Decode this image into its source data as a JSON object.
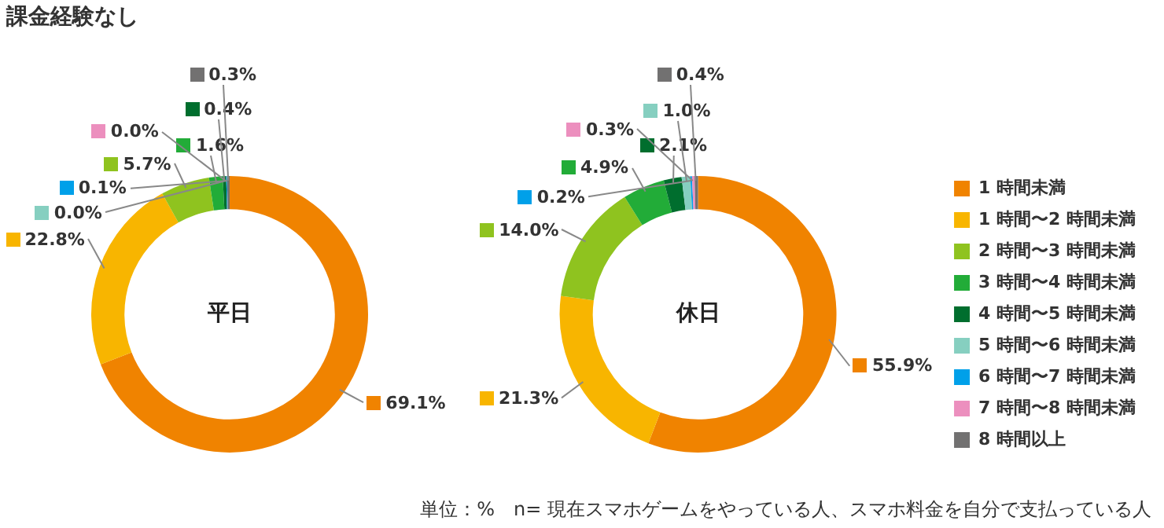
{
  "chart_data": {
    "type": "donut",
    "title": "課金経験なし",
    "annotations": [
      "単位：%　n= 現在スマホゲームをやっている人、スマホ料金を自分で支払っている人"
    ],
    "categories": [
      "1 時間未満",
      "1 時間〜2 時間未満",
      "2 時間〜3 時間未満",
      "3 時間〜4 時間未満",
      "4 時間〜5 時間未満",
      "5 時間〜6 時間未満",
      "6 時間〜7 時間未満",
      "7 時間〜8 時間未満",
      "8 時間以上"
    ],
    "colors": [
      "#f08300",
      "#f8b500",
      "#8fc31f",
      "#22ac38",
      "#006e2e",
      "#86cfc0",
      "#00a0e9",
      "#ec8fbe",
      "#727171"
    ],
    "series": [
      {
        "name": "平日",
        "values": [
          69.1,
          22.8,
          5.7,
          1.6,
          0.4,
          0.0,
          0.1,
          0.0,
          0.3
        ],
        "value_labels": [
          "69.1%",
          "22.8%",
          "5.7%",
          "1.6%",
          "0.4%",
          "0.0%",
          "0.1%",
          "0.0%",
          "0.3%"
        ]
      },
      {
        "name": "休日",
        "values": [
          55.9,
          21.3,
          14.0,
          4.9,
          2.1,
          1.0,
          0.2,
          0.3,
          0.4
        ],
        "value_labels": [
          "55.9%",
          "21.3%",
          "14.0%",
          "4.9%",
          "2.1%",
          "1.0%",
          "0.2%",
          "0.3%",
          "0.4%"
        ]
      }
    ],
    "legend": "right"
  }
}
